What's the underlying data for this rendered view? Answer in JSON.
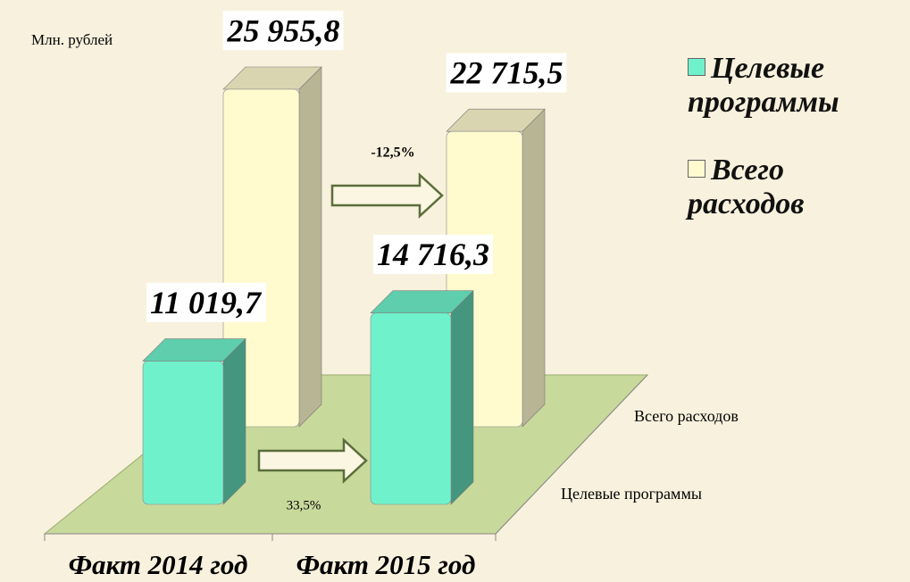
{
  "chart_data": {
    "type": "bar3d",
    "y_label": "Млн. рублей",
    "categories": [
      "Факт 2014 год",
      "Факт 2015 год"
    ],
    "series": [
      {
        "name": "Целевые программы",
        "color": "#6ff2cc",
        "values": [
          11019.7,
          14716.3
        ],
        "value_labels": [
          "11 019,7",
          "14 716,3"
        ]
      },
      {
        "name": "Всего расходов",
        "color": "#fffbcf",
        "values": [
          25955.8,
          22715.5
        ],
        "value_labels": [
          "25 955,8",
          "22 715,5"
        ]
      }
    ],
    "annotations": [
      "-12,5%",
      "33,5%"
    ]
  }
}
